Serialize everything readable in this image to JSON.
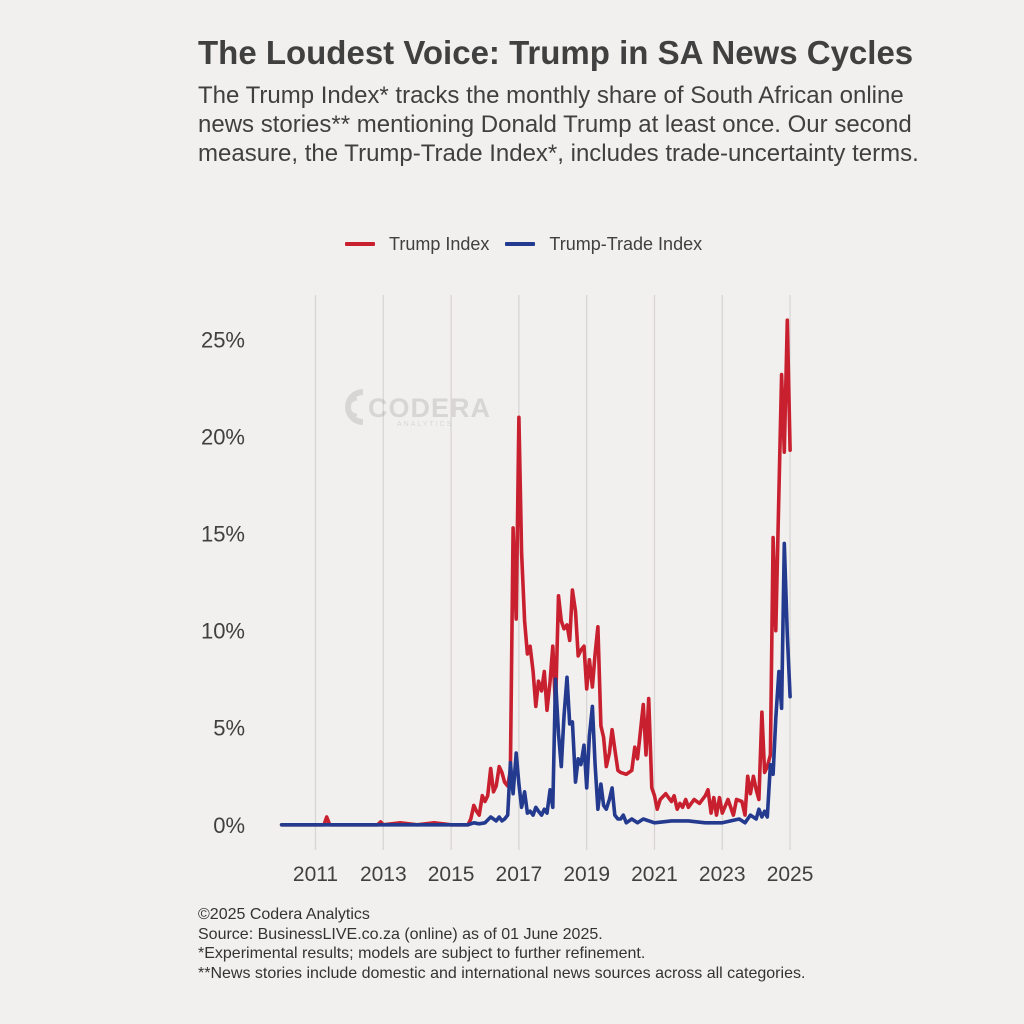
{
  "header": {
    "title": "The Loudest Voice: Trump in SA News Cycles",
    "subtitle_lines": [
      "The Trump Index* tracks the monthly share of South African online",
      "news stories** mentioning Donald Trump at least once. Our second",
      "measure, the Trump-Trade Index*, includes trade-uncertainty terms."
    ]
  },
  "watermark": {
    "brand": "CODERA",
    "tagline": "ANALYTICS"
  },
  "footer": {
    "lines": [
      "©2025 Codera Analytics",
      "Source: BusinessLIVE.co.za (online) as of 01 June 2025.",
      "*Experimental results; models are subject to further refinement.",
      "**News stories include domestic and international news sources across all categories."
    ]
  },
  "chart_data": {
    "type": "line",
    "title": "The Loudest Voice: Trump in SA News Cycles",
    "xlabel": "",
    "ylabel": "",
    "xlim": [
      2010.1,
      2025.5
    ],
    "ylim": [
      -1.3,
      27.3
    ],
    "x_ticks": [
      2011,
      2013,
      2015,
      2017,
      2019,
      2021,
      2023,
      2025
    ],
    "x_tick_labels": [
      "2011",
      "2013",
      "2015",
      "2017",
      "2019",
      "2021",
      "2023",
      "2025"
    ],
    "y_ticks": [
      0,
      5,
      10,
      15,
      20,
      25
    ],
    "y_tick_labels": [
      "0%",
      "5%",
      "10%",
      "15%",
      "20%",
      "25%"
    ],
    "grid": "vertical",
    "legend_position": "top-center",
    "series": [
      {
        "name": "Trump Index",
        "color": "#c8202f",
        "points": [
          [
            2010.0,
            0
          ],
          [
            2011.0,
            0
          ],
          [
            2011.25,
            0
          ],
          [
            2011.33,
            0.4
          ],
          [
            2011.42,
            0
          ],
          [
            2012.5,
            0
          ],
          [
            2012.83,
            0
          ],
          [
            2012.92,
            0.15
          ],
          [
            2013.0,
            0
          ],
          [
            2013.5,
            0.1
          ],
          [
            2014.0,
            0
          ],
          [
            2014.5,
            0.1
          ],
          [
            2015.0,
            0
          ],
          [
            2015.5,
            0
          ],
          [
            2015.58,
            0.3
          ],
          [
            2015.67,
            1.0
          ],
          [
            2015.75,
            0.7
          ],
          [
            2015.83,
            0.5
          ],
          [
            2015.92,
            1.5
          ],
          [
            2016.0,
            1.2
          ],
          [
            2016.08,
            1.5
          ],
          [
            2016.17,
            2.9
          ],
          [
            2016.25,
            1.7
          ],
          [
            2016.33,
            2.0
          ],
          [
            2016.42,
            3.0
          ],
          [
            2016.5,
            2.7
          ],
          [
            2016.58,
            2.2
          ],
          [
            2016.67,
            2.0
          ],
          [
            2016.75,
            2.8
          ],
          [
            2016.83,
            15.3
          ],
          [
            2016.92,
            10.6
          ],
          [
            2017.0,
            21.0
          ],
          [
            2017.08,
            14.0
          ],
          [
            2017.17,
            10.5
          ],
          [
            2017.25,
            8.8
          ],
          [
            2017.33,
            9.2
          ],
          [
            2017.42,
            7.9
          ],
          [
            2017.5,
            6.1
          ],
          [
            2017.58,
            7.4
          ],
          [
            2017.67,
            6.9
          ],
          [
            2017.75,
            7.9
          ],
          [
            2017.83,
            5.9
          ],
          [
            2017.92,
            7.4
          ],
          [
            2018.0,
            9.2
          ],
          [
            2018.08,
            6.0
          ],
          [
            2018.17,
            11.8
          ],
          [
            2018.25,
            10.5
          ],
          [
            2018.33,
            10.1
          ],
          [
            2018.42,
            10.3
          ],
          [
            2018.5,
            9.5
          ],
          [
            2018.58,
            12.1
          ],
          [
            2018.67,
            11.0
          ],
          [
            2018.75,
            8.7
          ],
          [
            2018.83,
            9.0
          ],
          [
            2018.92,
            9.2
          ],
          [
            2019.0,
            7.0
          ],
          [
            2019.08,
            8.5
          ],
          [
            2019.17,
            7.1
          ],
          [
            2019.25,
            8.8
          ],
          [
            2019.33,
            10.2
          ],
          [
            2019.42,
            5.1
          ],
          [
            2019.5,
            4.5
          ],
          [
            2019.58,
            3.0
          ],
          [
            2019.67,
            3.7
          ],
          [
            2019.75,
            4.9
          ],
          [
            2019.83,
            3.9
          ],
          [
            2019.92,
            2.8
          ],
          [
            2020.0,
            2.7
          ],
          [
            2020.17,
            2.6
          ],
          [
            2020.33,
            2.8
          ],
          [
            2020.42,
            4.0
          ],
          [
            2020.5,
            3.4
          ],
          [
            2020.67,
            6.2
          ],
          [
            2020.75,
            3.6
          ],
          [
            2020.83,
            6.5
          ],
          [
            2020.92,
            1.9
          ],
          [
            2021.0,
            1.5
          ],
          [
            2021.08,
            0.8
          ],
          [
            2021.17,
            1.3
          ],
          [
            2021.33,
            1.6
          ],
          [
            2021.5,
            1.2
          ],
          [
            2021.58,
            1.5
          ],
          [
            2021.67,
            0.8
          ],
          [
            2021.75,
            1.1
          ],
          [
            2021.83,
            0.9
          ],
          [
            2021.92,
            1.3
          ],
          [
            2022.0,
            0.9
          ],
          [
            2022.17,
            1.3
          ],
          [
            2022.33,
            1.1
          ],
          [
            2022.5,
            1.5
          ],
          [
            2022.58,
            1.8
          ],
          [
            2022.67,
            0.6
          ],
          [
            2022.75,
            1.4
          ],
          [
            2022.83,
            0.5
          ],
          [
            2022.92,
            1.4
          ],
          [
            2023.0,
            0.6
          ],
          [
            2023.17,
            1.3
          ],
          [
            2023.33,
            0.5
          ],
          [
            2023.42,
            1.3
          ],
          [
            2023.58,
            1.2
          ],
          [
            2023.67,
            0.5
          ],
          [
            2023.75,
            2.5
          ],
          [
            2023.83,
            1.6
          ],
          [
            2023.92,
            2.5
          ],
          [
            2024.0,
            1.8
          ],
          [
            2024.08,
            1.3
          ],
          [
            2024.17,
            5.8
          ],
          [
            2024.25,
            2.7
          ],
          [
            2024.33,
            3.0
          ],
          [
            2024.42,
            3.6
          ],
          [
            2024.5,
            14.8
          ],
          [
            2024.58,
            10.0
          ],
          [
            2024.67,
            17.1
          ],
          [
            2024.75,
            23.2
          ],
          [
            2024.83,
            19.2
          ],
          [
            2024.92,
            26.0
          ],
          [
            2025.0,
            19.3
          ]
        ]
      },
      {
        "name": "Trump-Trade Index",
        "color": "#233a8f",
        "points": [
          [
            2010.0,
            0
          ],
          [
            2015.5,
            0
          ],
          [
            2015.67,
            0.1
          ],
          [
            2015.83,
            0.05
          ],
          [
            2016.0,
            0.1
          ],
          [
            2016.17,
            0.4
          ],
          [
            2016.33,
            0.2
          ],
          [
            2016.42,
            0.4
          ],
          [
            2016.5,
            0.2
          ],
          [
            2016.58,
            0.3
          ],
          [
            2016.67,
            0.5
          ],
          [
            2016.75,
            3.2
          ],
          [
            2016.83,
            1.6
          ],
          [
            2016.92,
            3.7
          ],
          [
            2017.0,
            2.1
          ],
          [
            2017.08,
            0.9
          ],
          [
            2017.17,
            1.7
          ],
          [
            2017.25,
            0.6
          ],
          [
            2017.33,
            0.7
          ],
          [
            2017.42,
            0.5
          ],
          [
            2017.5,
            0.9
          ],
          [
            2017.58,
            0.7
          ],
          [
            2017.67,
            0.5
          ],
          [
            2017.75,
            0.8
          ],
          [
            2017.83,
            0.6
          ],
          [
            2017.92,
            1.8
          ],
          [
            2018.0,
            0.9
          ],
          [
            2018.08,
            7.5
          ],
          [
            2018.17,
            4.7
          ],
          [
            2018.25,
            3.0
          ],
          [
            2018.33,
            5.6
          ],
          [
            2018.42,
            7.6
          ],
          [
            2018.5,
            5.2
          ],
          [
            2018.58,
            5.3
          ],
          [
            2018.67,
            2.2
          ],
          [
            2018.75,
            3.4
          ],
          [
            2018.83,
            3.1
          ],
          [
            2018.92,
            4.1
          ],
          [
            2019.0,
            1.9
          ],
          [
            2019.08,
            4.6
          ],
          [
            2019.17,
            6.1
          ],
          [
            2019.25,
            3.1
          ],
          [
            2019.33,
            0.8
          ],
          [
            2019.42,
            2.1
          ],
          [
            2019.5,
            1.0
          ],
          [
            2019.58,
            0.8
          ],
          [
            2019.67,
            1.3
          ],
          [
            2019.75,
            1.9
          ],
          [
            2019.83,
            0.5
          ],
          [
            2019.92,
            0.3
          ],
          [
            2020.0,
            0.3
          ],
          [
            2020.08,
            0.5
          ],
          [
            2020.17,
            0.1
          ],
          [
            2020.33,
            0.3
          ],
          [
            2020.5,
            0.1
          ],
          [
            2020.67,
            0.3
          ],
          [
            2021.0,
            0.1
          ],
          [
            2021.5,
            0.2
          ],
          [
            2022.0,
            0.2
          ],
          [
            2022.5,
            0.1
          ],
          [
            2023.0,
            0.1
          ],
          [
            2023.5,
            0.3
          ],
          [
            2023.67,
            0.1
          ],
          [
            2023.83,
            0.5
          ],
          [
            2024.0,
            0.3
          ],
          [
            2024.08,
            0.8
          ],
          [
            2024.17,
            0.4
          ],
          [
            2024.25,
            0.7
          ],
          [
            2024.33,
            0.4
          ],
          [
            2024.42,
            3.1
          ],
          [
            2024.5,
            2.6
          ],
          [
            2024.58,
            5.5
          ],
          [
            2024.67,
            7.9
          ],
          [
            2024.75,
            6.0
          ],
          [
            2024.83,
            14.5
          ],
          [
            2024.92,
            9.8
          ],
          [
            2025.0,
            6.6
          ]
        ]
      }
    ]
  }
}
